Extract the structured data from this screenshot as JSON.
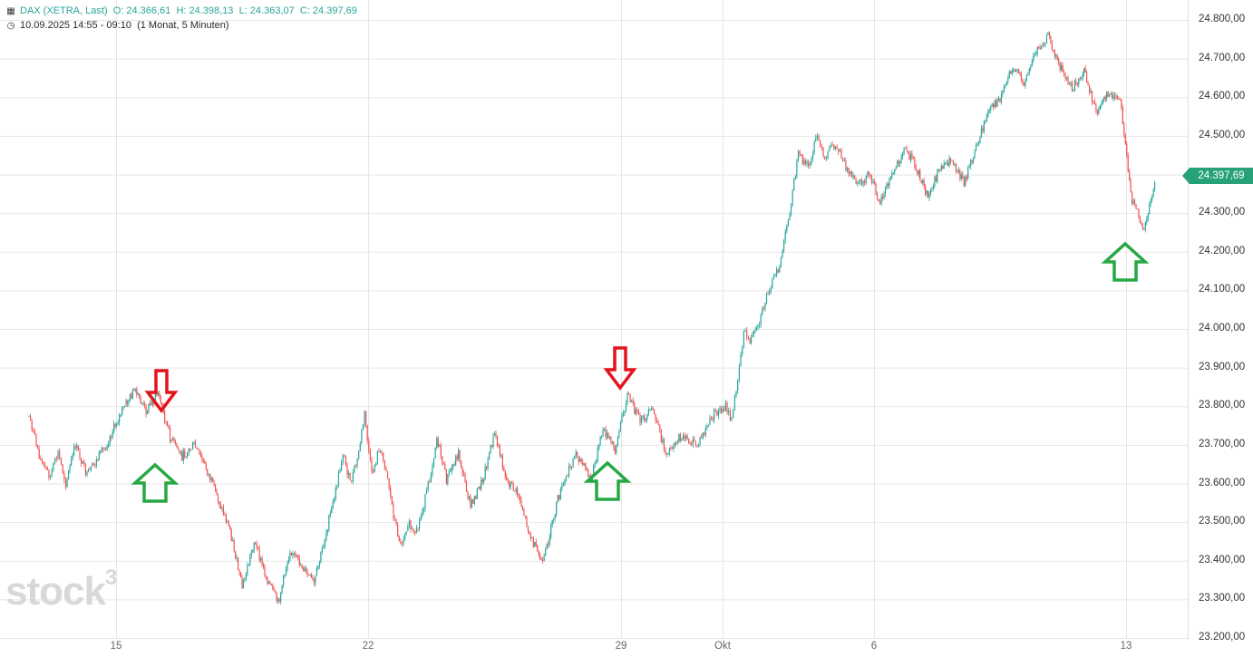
{
  "header": {
    "instrument": "DAX (XETRA, Last)",
    "open": "O: 24.366,61",
    "high": "H: 24.398,13",
    "low": "L: 24.363,07",
    "close": "C: 24.397,69",
    "range": "10.09.2025 14:55 - 09:10",
    "interval": "(1 Monat, 5 Minuten)"
  },
  "current_price_label": "24.397,69",
  "logo": {
    "text": "stock",
    "sup": "3"
  },
  "colors": {
    "up": "#26a69a",
    "down": "#ef5350",
    "arrow_up": "#27a844",
    "arrow_down": "#e4141c",
    "grid": "#e6e6e6",
    "price_tag": "#26a17a"
  },
  "annotations": [
    {
      "type": "arrow-down",
      "color": "red",
      "x": "2025-09-16",
      "y": 23860
    },
    {
      "type": "arrow-up",
      "color": "green",
      "x": "2025-09-16",
      "y": 23600
    },
    {
      "type": "arrow-down",
      "color": "red",
      "x": "2025-09-29",
      "y": 23875
    },
    {
      "type": "arrow-up",
      "color": "green",
      "x": "2025-09-28",
      "y": 23600
    },
    {
      "type": "arrow-up",
      "color": "green",
      "x": "2025-10-13",
      "y": 24190
    }
  ],
  "chart_data": {
    "type": "candlestick",
    "title": "DAX (XETRA, Last)",
    "interval": "5 Minuten",
    "y_ticks": [
      "24.800,00",
      "24.700,00",
      "24.600,00",
      "24.500,00",
      "24.400,00",
      "24.300,00",
      "24.200,00",
      "24.100,00",
      "24.000,00",
      "23.900,00",
      "23.800,00",
      "23.700,00",
      "23.600,00",
      "23.500,00",
      "23.400,00",
      "23.300,00",
      "23.200,00"
    ],
    "x_ticks": [
      "15",
      "22",
      "29",
      "Okt",
      "6",
      "13"
    ],
    "ylim": [
      23180,
      24830
    ],
    "grid": true,
    "series_path": [
      {
        "x": "2025-09-11",
        "y": 23775
      },
      {
        "x": "2025-09-11",
        "y": 23660
      },
      {
        "x": "2025-09-12",
        "y": 23620
      },
      {
        "x": "2025-09-12",
        "y": 23680
      },
      {
        "x": "2025-09-12",
        "y": 23600
      },
      {
        "x": "2025-09-13",
        "y": 23700
      },
      {
        "x": "2025-09-13",
        "y": 23620
      },
      {
        "x": "2025-09-14",
        "y": 23690
      },
      {
        "x": "2025-09-15",
        "y": 23790
      },
      {
        "x": "2025-09-15",
        "y": 23840
      },
      {
        "x": "2025-09-15",
        "y": 23790
      },
      {
        "x": "2025-09-16",
        "y": 23835
      },
      {
        "x": "2025-09-16",
        "y": 23720
      },
      {
        "x": "2025-09-16",
        "y": 23670
      },
      {
        "x": "2025-09-17",
        "y": 23700
      },
      {
        "x": "2025-09-17",
        "y": 23640
      },
      {
        "x": "2025-09-17",
        "y": 23560
      },
      {
        "x": "2025-09-18",
        "y": 23480
      },
      {
        "x": "2025-09-18",
        "y": 23330
      },
      {
        "x": "2025-09-18",
        "y": 23450
      },
      {
        "x": "2025-09-19",
        "y": 23360
      },
      {
        "x": "2025-09-19",
        "y": 23290
      },
      {
        "x": "2025-09-19",
        "y": 23430
      },
      {
        "x": "2025-09-20",
        "y": 23340
      },
      {
        "x": "2025-09-21",
        "y": 23580
      },
      {
        "x": "2025-09-21",
        "y": 23680
      },
      {
        "x": "2025-09-21",
        "y": 23600
      },
      {
        "x": "2025-09-21",
        "y": 23660
      },
      {
        "x": "2025-09-21",
        "y": 23780
      },
      {
        "x": "2025-09-22",
        "y": 23620
      },
      {
        "x": "2025-09-22",
        "y": 23690
      },
      {
        "x": "2025-09-22",
        "y": 23640
      },
      {
        "x": "2025-09-22",
        "y": 23520
      },
      {
        "x": "2025-09-22",
        "y": 23440
      },
      {
        "x": "2025-09-23",
        "y": 23500
      },
      {
        "x": "2025-09-23",
        "y": 23460
      },
      {
        "x": "2025-09-23",
        "y": 23530
      },
      {
        "x": "2025-09-23",
        "y": 23610
      },
      {
        "x": "2025-09-23",
        "y": 23720
      },
      {
        "x": "2025-09-24",
        "y": 23610
      },
      {
        "x": "2025-09-24",
        "y": 23680
      },
      {
        "x": "2025-09-24",
        "y": 23540
      },
      {
        "x": "2025-09-25",
        "y": 23610
      },
      {
        "x": "2025-09-25",
        "y": 23730
      },
      {
        "x": "2025-09-25",
        "y": 23610
      },
      {
        "x": "2025-09-26",
        "y": 23570
      },
      {
        "x": "2025-09-26",
        "y": 23460
      },
      {
        "x": "2025-09-26",
        "y": 23390
      },
      {
        "x": "2025-09-27",
        "y": 23560
      },
      {
        "x": "2025-09-27",
        "y": 23680
      },
      {
        "x": "2025-09-28",
        "y": 23610
      },
      {
        "x": "2025-09-28",
        "y": 23740
      },
      {
        "x": "2025-09-28",
        "y": 23690
      },
      {
        "x": "2025-09-29",
        "y": 23830
      },
      {
        "x": "2025-09-29",
        "y": 23760
      },
      {
        "x": "2025-09-29",
        "y": 23790
      },
      {
        "x": "2025-09-29",
        "y": 23680
      },
      {
        "x": "2025-09-30",
        "y": 23720
      },
      {
        "x": "2025-09-30",
        "y": 23700
      },
      {
        "x": "2025-09-30",
        "y": 23780
      },
      {
        "x": "2025-10-01",
        "y": 23800
      },
      {
        "x": "2025-10-01",
        "y": 23760
      },
      {
        "x": "2025-10-01",
        "y": 23880
      },
      {
        "x": "2025-10-01",
        "y": 23990
      },
      {
        "x": "2025-10-01",
        "y": 23970
      },
      {
        "x": "2025-10-02",
        "y": 24000
      },
      {
        "x": "2025-10-02",
        "y": 24100
      },
      {
        "x": "2025-10-02",
        "y": 24150
      },
      {
        "x": "2025-10-03",
        "y": 24280
      },
      {
        "x": "2025-10-03",
        "y": 24450
      },
      {
        "x": "2025-10-03",
        "y": 24420
      },
      {
        "x": "2025-10-04",
        "y": 24500
      },
      {
        "x": "2025-10-04",
        "y": 24430
      },
      {
        "x": "2025-10-04",
        "y": 24480
      },
      {
        "x": "2025-10-04",
        "y": 24460
      },
      {
        "x": "2025-10-05",
        "y": 24400
      },
      {
        "x": "2025-10-05",
        "y": 24370
      },
      {
        "x": "2025-10-05",
        "y": 24400
      },
      {
        "x": "2025-10-06",
        "y": 24330
      },
      {
        "x": "2025-10-06",
        "y": 24400
      },
      {
        "x": "2025-10-06",
        "y": 24470
      },
      {
        "x": "2025-10-07",
        "y": 24420
      },
      {
        "x": "2025-10-07",
        "y": 24340
      },
      {
        "x": "2025-10-07",
        "y": 24420
      },
      {
        "x": "2025-10-08",
        "y": 24440
      },
      {
        "x": "2025-10-08",
        "y": 24380
      },
      {
        "x": "2025-10-08",
        "y": 24470
      },
      {
        "x": "2025-10-09",
        "y": 24560
      },
      {
        "x": "2025-10-09",
        "y": 24600
      },
      {
        "x": "2025-10-09",
        "y": 24680
      },
      {
        "x": "2025-10-10",
        "y": 24640
      },
      {
        "x": "2025-10-10",
        "y": 24720
      },
      {
        "x": "2025-10-10",
        "y": 24760
      },
      {
        "x": "2025-10-11",
        "y": 24680
      },
      {
        "x": "2025-10-11",
        "y": 24620
      },
      {
        "x": "2025-10-11",
        "y": 24670
      },
      {
        "x": "2025-10-12",
        "y": 24560
      },
      {
        "x": "2025-10-12",
        "y": 24610
      },
      {
        "x": "2025-10-12",
        "y": 24590
      },
      {
        "x": "2025-10-13",
        "y": 24330
      },
      {
        "x": "2025-10-13",
        "y": 24260
      },
      {
        "x": "2025-10-13",
        "y": 24397.69
      }
    ]
  }
}
